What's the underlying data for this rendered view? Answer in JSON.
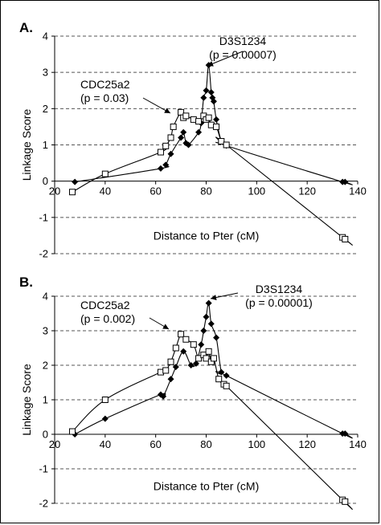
{
  "chart_data": [
    {
      "type": "line",
      "panel_label": "A.",
      "xlabel": "Distance to Pter (cM)",
      "ylabel": "Linkage Score",
      "xlim": [
        20,
        140
      ],
      "ylim": [
        -2,
        4
      ],
      "xticks": [
        20,
        40,
        60,
        80,
        100,
        120,
        140
      ],
      "yticks": [
        -2,
        -1,
        0,
        1,
        2,
        3,
        4
      ],
      "grid": "horizontal dashed",
      "annotations": [
        {
          "lines": [
            "D3S1234",
            "(p = 0.00007)"
          ],
          "target": [
            81,
            3.2
          ]
        },
        {
          "lines": [
            "CDC25a2",
            "(p = 0.03)"
          ],
          "target": [
            70,
            1.9
          ]
        }
      ],
      "series": [
        {
          "marker": "diamond-filled",
          "points": [
            [
              28,
              -0.02
            ],
            [
              62,
              0.35
            ],
            [
              64,
              0.45
            ],
            [
              66,
              0.75
            ],
            [
              70,
              1.2
            ],
            [
              71,
              1.35
            ],
            [
              72,
              1.05
            ],
            [
              73,
              1.0
            ],
            [
              77,
              1.35
            ],
            [
              78,
              1.6
            ],
            [
              79,
              2.3
            ],
            [
              80,
              2.5
            ],
            [
              81,
              3.2
            ],
            [
              82,
              2.45
            ],
            [
              82.5,
              2.3
            ],
            [
              83,
              2.2
            ],
            [
              84,
              1.7
            ],
            [
              86,
              1.1
            ],
            [
              88,
              0.98
            ],
            [
              134,
              -0.02
            ],
            [
              135,
              -0.02
            ]
          ]
        },
        {
          "marker": "square-open",
          "points": [
            [
              27,
              -0.3
            ],
            [
              40,
              0.2
            ],
            [
              62,
              0.8
            ],
            [
              64,
              0.97
            ],
            [
              66,
              1.2
            ],
            [
              67,
              1.5
            ],
            [
              70,
              1.9
            ],
            [
              71,
              1.75
            ],
            [
              72,
              1.8
            ],
            [
              75,
              1.7
            ],
            [
              77,
              1.65
            ],
            [
              79,
              1.8
            ],
            [
              80,
              1.7
            ],
            [
              81,
              1.75
            ],
            [
              82,
              1.55
            ],
            [
              84,
              1.5
            ],
            [
              86,
              1.1
            ],
            [
              88,
              1.0
            ],
            [
              134,
              -1.55
            ],
            [
              135,
              -1.6
            ]
          ]
        }
      ]
    },
    {
      "type": "line",
      "panel_label": "B.",
      "xlabel": "Distance to Pter (cM)",
      "ylabel": "Linkage Score",
      "xlim": [
        20,
        140
      ],
      "ylim": [
        -2,
        4
      ],
      "xticks": [
        20,
        40,
        60,
        80,
        100,
        120,
        140
      ],
      "yticks": [
        -2,
        -1,
        0,
        1,
        2,
        3,
        4
      ],
      "grid": "horizontal dashed",
      "annotations": [
        {
          "lines": [
            "D3S1234",
            "(p = 0.00001)"
          ],
          "target": [
            81,
            3.8
          ]
        },
        {
          "lines": [
            "CDC25a2",
            "(p = 0.002)"
          ],
          "target": [
            70,
            2.9
          ]
        }
      ],
      "series": [
        {
          "marker": "diamond-filled",
          "points": [
            [
              28,
              0.0
            ],
            [
              40,
              0.45
            ],
            [
              62,
              1.15
            ],
            [
              63,
              1.1
            ],
            [
              66,
              1.6
            ],
            [
              68,
              1.95
            ],
            [
              71,
              2.4
            ],
            [
              74,
              2.0
            ],
            [
              76,
              2.05
            ],
            [
              78,
              2.6
            ],
            [
              79,
              3.0
            ],
            [
              80,
              3.4
            ],
            [
              81,
              3.8
            ],
            [
              82,
              3.2
            ],
            [
              84,
              2.8
            ],
            [
              86,
              1.8
            ],
            [
              88,
              1.7
            ],
            [
              134,
              0.02
            ],
            [
              135,
              0.02
            ]
          ]
        },
        {
          "marker": "square-open",
          "points": [
            [
              27,
              0.08
            ],
            [
              40,
              1.0
            ],
            [
              62,
              1.8
            ],
            [
              64,
              1.85
            ],
            [
              66,
              2.1
            ],
            [
              68,
              2.5
            ],
            [
              70,
              2.9
            ],
            [
              72,
              2.75
            ],
            [
              75,
              2.6
            ],
            [
              77,
              2.2
            ],
            [
              79,
              2.3
            ],
            [
              80,
              2.2
            ],
            [
              81,
              2.4
            ],
            [
              82,
              2.1
            ],
            [
              83,
              2.2
            ],
            [
              85,
              1.6
            ],
            [
              87,
              1.45
            ],
            [
              88,
              1.4
            ],
            [
              134,
              -1.9
            ],
            [
              135,
              -1.95
            ]
          ]
        }
      ]
    }
  ]
}
